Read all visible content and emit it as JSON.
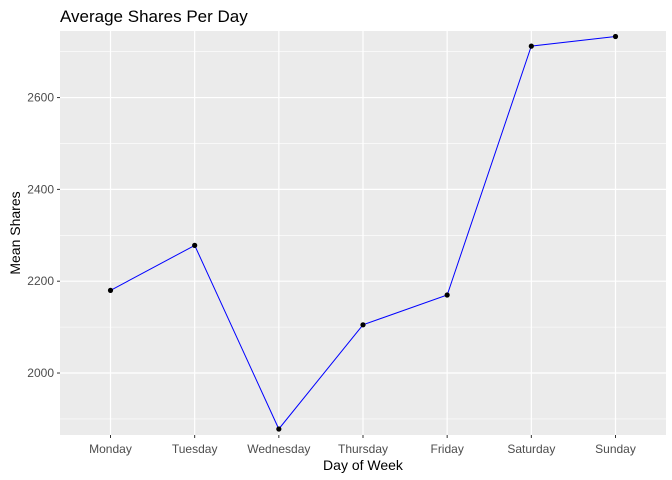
{
  "chart_data": {
    "type": "line",
    "title": "Average Shares Per Day",
    "xlabel": "Day of Week",
    "ylabel": "Mean Shares",
    "categories": [
      "Monday",
      "Tuesday",
      "Wednesday",
      "Thursday",
      "Friday",
      "Saturday",
      "Sunday"
    ],
    "values": [
      2180,
      2278,
      1878,
      2105,
      2170,
      2712,
      2733
    ],
    "ylim": [
      1865,
      2745
    ],
    "yticks": [
      2000,
      2200,
      2400,
      2600
    ],
    "ytick_labels": [
      "2000",
      "2200",
      "2400",
      "2600"
    ],
    "grid": true,
    "legend": "none",
    "colors": {
      "line": "#0000ff",
      "point": "#000000",
      "panel_background": "#ebebeb",
      "grid": "#ffffff"
    }
  }
}
